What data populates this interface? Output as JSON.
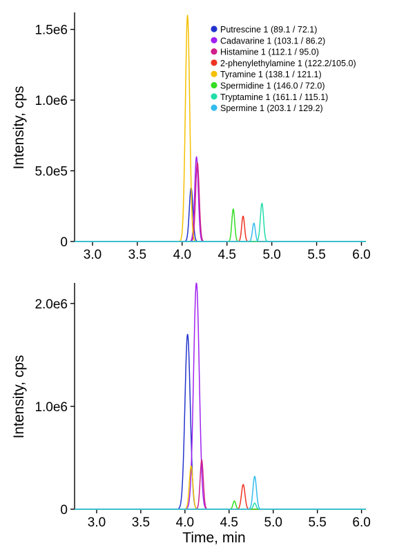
{
  "chart_data": [
    {
      "type": "line",
      "title": "",
      "xlabel": "",
      "ylabel": "Intensity, cps",
      "xlim": [
        2.8,
        6.05
      ],
      "ylim": [
        0,
        1620000
      ],
      "x_ticks": [
        3.0,
        3.5,
        4.0,
        4.5,
        5.0,
        5.5,
        6.0
      ],
      "x_tick_labels": [
        "3.0",
        "3.5",
        "4.0",
        "4.5",
        "5.0",
        "5.5",
        "6.0"
      ],
      "y_ticks": [
        0,
        500000,
        1000000,
        1500000
      ],
      "y_tick_labels": [
        "0",
        "5.0e5",
        "1.0e6",
        "1.5e6"
      ],
      "grid": false,
      "legend_position": "top-right",
      "series": [
        {
          "name": "Putrescine 1 (89.1 / 72.1)",
          "color": "#2233cc",
          "peaks": [
            {
              "rt": 4.1,
              "height": 380000,
              "width": 0.02
            }
          ]
        },
        {
          "name": "Cadavarine 1 (103.1 / 86.2)",
          "color": "#a020f0",
          "peaks": [
            {
              "rt": 4.16,
              "height": 600000,
              "width": 0.02
            }
          ]
        },
        {
          "name": "Histamine 1 (112.1 / 95.0)",
          "color": "#d0208a",
          "peaks": [
            {
              "rt": 4.17,
              "height": 560000,
              "width": 0.02
            }
          ]
        },
        {
          "name": "2-phenylethylamine 1 (122.2/105.0)",
          "color": "#ee3322",
          "peaks": [
            {
              "rt": 4.68,
              "height": 180000,
              "width": 0.016
            }
          ]
        },
        {
          "name": "Tyramine 1 (138.1 / 121.1)",
          "color": "#f5c000",
          "peaks": [
            {
              "rt": 4.06,
              "height": 1600000,
              "width": 0.024
            }
          ]
        },
        {
          "name": "Spermidine 1 (146.0 / 72.0)",
          "color": "#33dd22",
          "peaks": [
            {
              "rt": 4.57,
              "height": 230000,
              "width": 0.016
            }
          ]
        },
        {
          "name": "Tryptamine 1 (161.1 / 115.1)",
          "color": "#22ddaa",
          "peaks": [
            {
              "rt": 4.89,
              "height": 270000,
              "width": 0.018
            }
          ]
        },
        {
          "name": "Spermine 1 (203.1 / 129.2)",
          "color": "#33bbee",
          "peaks": [
            {
              "rt": 4.8,
              "height": 130000,
              "width": 0.016
            }
          ]
        }
      ]
    },
    {
      "type": "line",
      "title": "",
      "xlabel": "Time, min",
      "ylabel": "Intensity, cps",
      "xlim": [
        2.75,
        6.05
      ],
      "ylim": [
        0,
        2200000
      ],
      "x_ticks": [
        3.0,
        3.5,
        4.0,
        4.5,
        5.0,
        5.5,
        6.0
      ],
      "x_tick_labels": [
        "3.0",
        "3.5",
        "4.0",
        "4.5",
        "5.0",
        "5.5",
        "6.0"
      ],
      "y_ticks": [
        0,
        1000000,
        2000000
      ],
      "y_tick_labels": [
        "0",
        "1.0e6",
        "2.0e6"
      ],
      "grid": false,
      "series": [
        {
          "color": "#2233cc",
          "peaks": [
            {
              "rt": 4.03,
              "height": 1700000,
              "width": 0.03
            }
          ]
        },
        {
          "color": "#a020f0",
          "peaks": [
            {
              "rt": 4.13,
              "height": 2200000,
              "width": 0.032
            }
          ]
        },
        {
          "color": "#d0208a",
          "peaks": [
            {
              "rt": 4.19,
              "height": 480000,
              "width": 0.018
            }
          ]
        },
        {
          "color": "#ee3322",
          "peaks": [
            {
              "rt": 4.66,
              "height": 240000,
              "width": 0.02
            }
          ]
        },
        {
          "color": "#f5c000",
          "peaks": [
            {
              "rt": 4.07,
              "height": 420000,
              "width": 0.02
            }
          ]
        },
        {
          "color": "#33dd22",
          "peaks": [
            {
              "rt": 4.56,
              "height": 80000,
              "width": 0.016
            }
          ]
        },
        {
          "color": "#22ddaa",
          "peaks": [
            {
              "rt": 4.79,
              "height": 60000,
              "width": 0.016
            }
          ]
        },
        {
          "color": "#33bbee",
          "peaks": [
            {
              "rt": 4.79,
              "height": 320000,
              "width": 0.02
            }
          ]
        }
      ]
    }
  ]
}
